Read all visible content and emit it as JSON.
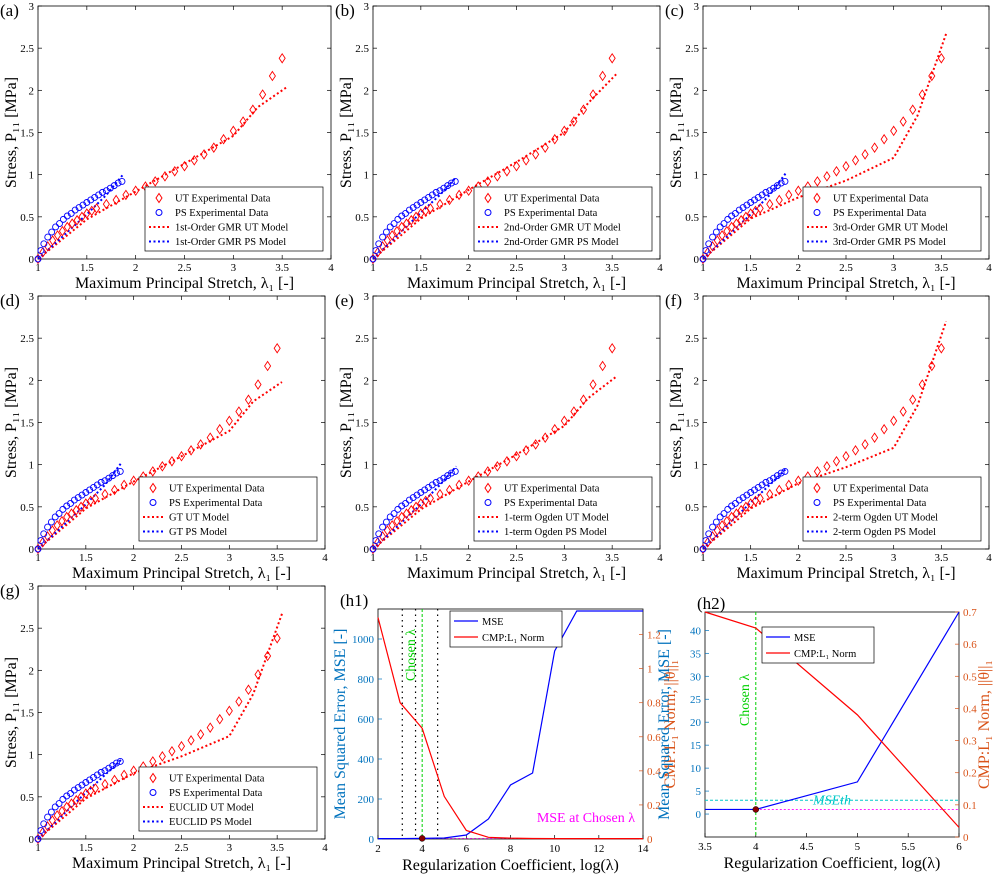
{
  "colors": {
    "ut": "#ff0000",
    "ps": "#0000ff",
    "mse_axis": "#0072bd",
    "l1_axis": "#d95319",
    "chosen": "#00d000",
    "mse_chosen_label": "#ff00ff",
    "mse_th": "#00c8c8",
    "marker": "#8b0000"
  },
  "stress_panels": {
    "xlabel": "Maximum Principal Stretch, λ₁ [-]",
    "ylabel": "Stress, P₁₁ [MPa]",
    "xlim": [
      1,
      4
    ],
    "ylim": [
      0,
      3
    ],
    "xticks": [
      "1",
      "1.5",
      "2",
      "2.5",
      "3",
      "3.5",
      "4"
    ],
    "yticks": [
      "0",
      "0.5",
      "1",
      "1.5",
      "2",
      "2.5",
      "3"
    ],
    "ut_data": {
      "x": [
        1.0,
        1.05,
        1.1,
        1.15,
        1.2,
        1.25,
        1.3,
        1.35,
        1.4,
        1.45,
        1.5,
        1.55,
        1.6,
        1.7,
        1.8,
        1.9,
        2.0,
        2.1,
        2.2,
        2.3,
        2.4,
        2.5,
        2.6,
        2.7,
        2.8,
        2.9,
        3.0,
        3.1,
        3.2,
        3.3,
        3.4,
        3.5
      ],
      "y": [
        0.0,
        0.08,
        0.15,
        0.22,
        0.28,
        0.33,
        0.38,
        0.42,
        0.46,
        0.5,
        0.54,
        0.57,
        0.6,
        0.65,
        0.7,
        0.76,
        0.81,
        0.86,
        0.92,
        0.98,
        1.04,
        1.1,
        1.17,
        1.24,
        1.32,
        1.42,
        1.52,
        1.63,
        1.77,
        1.95,
        2.17,
        2.38
      ]
    },
    "ps_data": {
      "x": [
        1.0,
        1.03,
        1.06,
        1.1,
        1.14,
        1.18,
        1.22,
        1.26,
        1.3,
        1.34,
        1.38,
        1.42,
        1.46,
        1.5,
        1.54,
        1.58,
        1.62,
        1.66,
        1.7,
        1.74,
        1.78,
        1.82,
        1.86
      ],
      "y": [
        0.0,
        0.1,
        0.18,
        0.26,
        0.32,
        0.38,
        0.42,
        0.47,
        0.51,
        0.54,
        0.58,
        0.61,
        0.64,
        0.67,
        0.7,
        0.73,
        0.76,
        0.79,
        0.81,
        0.84,
        0.87,
        0.9,
        0.92
      ]
    },
    "panels": [
      {
        "label": "(a)",
        "legend": [
          "UT Experimental Data",
          "PS Experimental Data",
          "1st-Order GMR UT Model",
          "1st-Order GMR PS Model"
        ],
        "ut_model_y": [
          0.0,
          0.47,
          0.8,
          1.13,
          1.46,
          1.8,
          2.04
        ],
        "ps_model_y": [
          0.0,
          0.53,
          0.76,
          1.0
        ]
      },
      {
        "label": "(b)",
        "legend": [
          "UT Experimental Data",
          "PS Experimental Data",
          "2nd-Order GMR UT Model",
          "2nd-Order GMR PS Model"
        ],
        "ut_model_y": [
          0.0,
          0.48,
          0.82,
          1.15,
          1.5,
          1.85,
          2.2
        ],
        "ps_model_y": [
          0.0,
          0.55,
          0.76,
          0.97
        ]
      },
      {
        "label": "(c)",
        "legend": [
          "UT Experimental Data",
          "PS Experimental Data",
          "3rd-Order GMR UT Model",
          "3rd-Order GMR PS Model"
        ],
        "ut_model_y": [
          0.0,
          0.48,
          0.73,
          0.93,
          1.2,
          1.7,
          2.67
        ],
        "ps_model_y": [
          0.0,
          0.53,
          0.76,
          1.02
        ]
      },
      {
        "label": "(d)",
        "legend": [
          "UT Experimental Data",
          "PS Experimental Data",
          "GT UT Model",
          "GT PS Model"
        ],
        "ut_model_y": [
          0.0,
          0.48,
          0.8,
          1.1,
          1.4,
          1.75,
          1.98
        ],
        "ps_model_y": [
          0.0,
          0.53,
          0.76,
          1.02
        ]
      },
      {
        "label": "(e)",
        "legend": [
          "UT Experimental Data",
          "PS Experimental Data",
          "1-term Ogden UT Model",
          "1-term Ogden PS Model"
        ],
        "ut_model_y": [
          0.0,
          0.47,
          0.8,
          1.12,
          1.46,
          1.79,
          2.05
        ],
        "ps_model_y": [
          0.0,
          0.53,
          0.76,
          0.98
        ]
      },
      {
        "label": "(f)",
        "legend": [
          "UT Experimental Data",
          "PS Experimental Data",
          "2-term Ogden UT Model",
          "2-term Ogden PS Model"
        ],
        "ut_model_y": [
          0.0,
          0.48,
          0.78,
          0.97,
          1.2,
          1.7,
          2.7
        ],
        "ps_model_y": [
          0.0,
          0.55,
          0.76,
          0.95
        ]
      },
      {
        "label": "(g)",
        "legend": [
          "UT Experimental Data",
          "PS Experimental Data",
          "EUCLID UT Model",
          "EUCLID PS Model"
        ],
        "ut_model_y": [
          0.0,
          0.48,
          0.78,
          0.98,
          1.22,
          1.72,
          2.67
        ],
        "ps_model_y": [
          0.0,
          0.55,
          0.76,
          0.94
        ]
      }
    ],
    "model_x_ut": [
      1.0,
      1.5,
      2.0,
      2.5,
      3.0,
      3.25,
      3.55
    ],
    "model_x_ps": [
      1.0,
      1.5,
      1.7,
      1.87
    ]
  },
  "chart_data": [
    {
      "type": "line",
      "label": "(h1)",
      "title": "",
      "xlabel": "Regularization Coefficient, log(λ)",
      "ylabel": "Mean Squared Error, MSE [-]",
      "ylabel_right": "CMP:L₁ Norm, ||θ||₁",
      "xlim": [
        2,
        14
      ],
      "ylim": [
        0,
        1150
      ],
      "ylim_right": [
        0,
        1.35
      ],
      "xticks": [
        "2",
        "4",
        "6",
        "8",
        "10",
        "12",
        "14"
      ],
      "yticks": [
        "0",
        "200",
        "400",
        "600",
        "800",
        "1000"
      ],
      "yticks_right": [
        "0",
        "0.2",
        "0.4",
        "0.6",
        "0.8",
        "1",
        "1.2"
      ],
      "series": [
        {
          "name": "MSE",
          "x": [
            2,
            3,
            4,
            5,
            6,
            7,
            8,
            9,
            10,
            11,
            12,
            13,
            14
          ],
          "values": [
            2,
            2,
            3,
            5,
            20,
            100,
            270,
            330,
            940,
            1140,
            1140,
            1140,
            1140
          ]
        },
        {
          "name": "CMP:L₁ Norm",
          "x": [
            2,
            3,
            4,
            5,
            6,
            7,
            8,
            9,
            10,
            11,
            12,
            13,
            14
          ],
          "values": [
            1.3,
            0.8,
            0.65,
            0.25,
            0.05,
            0.01,
            0.005,
            0.003,
            0.002,
            0.002,
            0.002,
            0.002,
            0.002
          ]
        }
      ],
      "vlines_dotted": [
        3.1,
        3.7,
        4.7
      ],
      "chosen_x": 4,
      "annotations": [
        "Chosen λ",
        "MSE at Chosen λ"
      ],
      "legend": [
        "MSE",
        "CMP:L₁ Norm"
      ]
    },
    {
      "type": "line",
      "label": "(h2)",
      "title": "",
      "xlabel": "Regularization Coefficient, log(λ)",
      "ylabel": "Mean Squared Error, MSE [-]",
      "ylabel_right": "CMP:L₁ Norm, ||θ||₁",
      "xlim": [
        3.5,
        6
      ],
      "ylim": [
        -5,
        44
      ],
      "ylim_right": [
        0,
        0.7
      ],
      "xticks": [
        "3.5",
        "4",
        "4.5",
        "5",
        "5.5",
        "6"
      ],
      "yticks": [
        "0",
        "5",
        "10",
        "15",
        "20",
        "25",
        "30",
        "35",
        "40"
      ],
      "yticks_right": [
        "0",
        "0.1",
        "0.2",
        "0.3",
        "0.4",
        "0.5",
        "0.6",
        "0.7"
      ],
      "series": [
        {
          "name": "MSE",
          "x": [
            3.5,
            4,
            5,
            6
          ],
          "values": [
            1,
            1,
            7,
            44
          ]
        },
        {
          "name": "CMP:L₁ Norm",
          "x": [
            3.5,
            4,
            5,
            6
          ],
          "values": [
            0.7,
            0.65,
            0.38,
            0.03
          ]
        }
      ],
      "mse_th": 3,
      "chosen_x": 4,
      "annotations": [
        "Chosen λ",
        "MSEth"
      ],
      "legend": [
        "MSE",
        "CMP:L₁ Norm"
      ]
    }
  ]
}
